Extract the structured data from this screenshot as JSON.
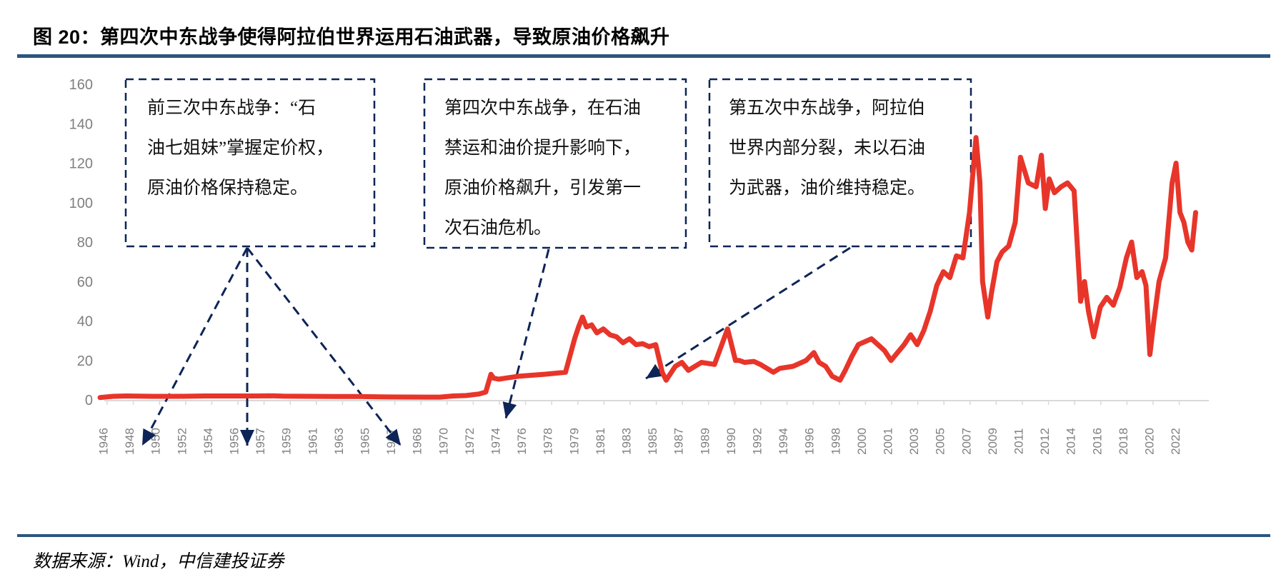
{
  "header": {
    "title": "图 20：第四次中东战争使得阿拉伯世界运用石油武器，导致原油价格飙升"
  },
  "footer": {
    "source": "数据来源：Wind，中信建投证券"
  },
  "annotations": [
    {
      "id": "box1",
      "lines": [
        "前三次中东战争：“石",
        "油七姐妹”掌握定价权，",
        "原油价格保持稳定。"
      ]
    },
    {
      "id": "box2",
      "lines": [
        "第四次中东战争，在石油",
        "禁运和油价提升影响下，",
        "原油价格飙升，引发第一",
        "次石油危机。"
      ]
    },
    {
      "id": "box3",
      "lines": [
        "第五次中东战争，阿拉伯",
        "世界内部分裂，未以石油",
        "为武器，油价维持稳定。"
      ]
    }
  ],
  "colors": {
    "series": "#e8352a",
    "annotation": "#0d2457",
    "rule": "#2b5680",
    "axis_text": "#7f7f7f"
  },
  "chart_data": {
    "type": "line",
    "title": "图 20：第四次中东战争使得阿拉伯世界运用石油武器，导致原油价格飙升",
    "xlabel": "",
    "ylabel": "",
    "ylim": [
      0,
      160
    ],
    "yticks": [
      0,
      20,
      40,
      60,
      80,
      100,
      120,
      140,
      160
    ],
    "xtick_labels": [
      "1946",
      "1948",
      "1950",
      "1952",
      "1954",
      "1956",
      "1957",
      "1959",
      "1961",
      "1963",
      "1965",
      "1967",
      "1968",
      "1970",
      "1972",
      "1974",
      "1976",
      "1978",
      "1979",
      "1981",
      "1983",
      "1985",
      "1987",
      "1989",
      "1990",
      "1992",
      "1994",
      "1996",
      "1998",
      "2000",
      "2001",
      "2003",
      "2005",
      "2007",
      "2009",
      "2011",
      "2012",
      "2014",
      "2016",
      "2018",
      "2020",
      "2022"
    ],
    "grid": false,
    "legend": "none",
    "series": [
      {
        "name": "原油价格",
        "x": [
          1946,
          1947,
          1948,
          1950,
          1952,
          1954,
          1956,
          1957,
          1958,
          1959,
          1961,
          1963,
          1965,
          1967,
          1969,
          1970,
          1971,
          1972,
          1973,
          1973.5,
          1973.9,
          1974.1,
          1974.5,
          1975,
          1976,
          1977,
          1978,
          1978.8,
          1979.3,
          1979.6,
          1979.9,
          1980.2,
          1980.6,
          1981,
          1981.5,
          1982,
          1982.5,
          1983,
          1983.5,
          1984,
          1984.5,
          1985,
          1985.5,
          1986,
          1986.3,
          1986.6,
          1987,
          1987.5,
          1988,
          1988.5,
          1989,
          1989.5,
          1990,
          1990.6,
          1990.9,
          1991.3,
          1992,
          1992.5,
          1993,
          1993.5,
          1994,
          1995,
          1996,
          1996.6,
          1997,
          1997.5,
          1998,
          1998.6,
          1999,
          1999.5,
          2000,
          2000.5,
          2001,
          2001.5,
          2002,
          2002.5,
          2003,
          2003.5,
          2004,
          2004.5,
          2005,
          2005.5,
          2006,
          2006.5,
          2007,
          2007.5,
          2008,
          2008.3,
          2008.5,
          2008.9,
          2009.2,
          2009.6,
          2010,
          2010.5,
          2011,
          2011.2,
          2011.5,
          2011.8,
          2012,
          2012.3,
          2012.6,
          2013,
          2013.5,
          2014,
          2014.5,
          2015,
          2015.3,
          2015.6,
          2016,
          2016.5,
          2017,
          2017.5,
          2018,
          2018.5,
          2018.9,
          2019.3,
          2019.7,
          2020,
          2020.3,
          2020.6,
          2021,
          2021.5,
          2022,
          2022.3,
          2022.6,
          2022.9,
          2023.2,
          2023.5,
          2023.8
        ],
        "values": [
          1.2,
          1.8,
          2.0,
          1.8,
          1.8,
          2.0,
          2.0,
          2.0,
          2.1,
          1.9,
          1.8,
          1.7,
          1.7,
          1.5,
          1.4,
          1.4,
          2.0,
          2.2,
          3.0,
          4.0,
          13.0,
          11.0,
          10.5,
          11.0,
          12.0,
          12.5,
          13.0,
          14.0,
          31.0,
          37.0,
          42.0,
          37.0,
          38.0,
          34.0,
          36.0,
          33.0,
          32.0,
          29.0,
          31.0,
          28.0,
          28.5,
          27.0,
          28.0,
          14.0,
          10.0,
          13.0,
          17.0,
          19.0,
          15.0,
          17.0,
          19.0,
          18.0,
          36.0,
          20.0,
          20.0,
          19.0,
          19.5,
          18.0,
          16.0,
          14.0,
          16.0,
          17.0,
          20.0,
          24.0,
          19.0,
          17.0,
          12.0,
          10.0,
          15.0,
          22.0,
          28.0,
          31.0,
          25.0,
          20.0,
          24.0,
          28.0,
          33.0,
          28.0,
          35.0,
          45.0,
          58.0,
          65.0,
          62.0,
          73.0,
          72.0,
          95.0,
          133.0,
          110.0,
          60.0,
          42.0,
          55.0,
          70.0,
          75.0,
          78.0,
          90.0,
          123.0,
          110.0,
          108.0,
          124.0,
          97.0,
          112.0,
          105.0,
          108.0,
          110.0,
          106.0,
          50.0,
          60.0,
          45.0,
          32.0,
          47.0,
          52.0,
          48.0,
          57.0,
          72.0,
          80.0,
          62.0,
          65.0,
          58.0,
          23.0,
          40.0,
          60.0,
          72.0,
          110.0,
          120.0,
          95.0,
          90.0,
          80.0,
          76.0,
          95.0
        ]
      }
    ]
  }
}
